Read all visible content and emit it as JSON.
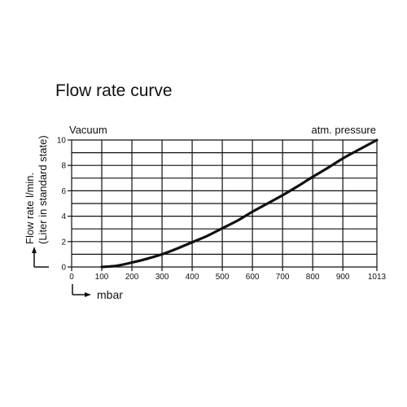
{
  "chart_data": {
    "type": "line",
    "title": "Flow rate curve",
    "ylabel_line1": "Flow rate l/min.",
    "ylabel_line2": "(Liter in standard state)",
    "xlabel": "mbar",
    "left_annotation": "Vacuum",
    "right_annotation": "atm. pressure",
    "grid": true,
    "xlim": [
      0,
      1013
    ],
    "ylim": [
      0,
      10
    ],
    "x_ticks": [
      0,
      100,
      200,
      300,
      400,
      500,
      600,
      700,
      800,
      900,
      1013
    ],
    "x_tick_labels": [
      "0",
      "100",
      "200",
      "300",
      "400",
      "500",
      "600",
      "700",
      "800",
      "900",
      "1013"
    ],
    "y_ticks": [
      0,
      2,
      4,
      6,
      8,
      10
    ],
    "y_tick_labels": [
      "0",
      "2",
      "4",
      "6",
      "8",
      "10"
    ],
    "y_gridlines": [
      0,
      1,
      2,
      3,
      4,
      5,
      6,
      7,
      8,
      9,
      10
    ],
    "series": [
      {
        "x": [
          100,
          150,
          200,
          250,
          300,
          350,
          400,
          450,
          500,
          550,
          600,
          650,
          700,
          750,
          800,
          850,
          900,
          950,
          1013
        ],
        "y": [
          0.0,
          0.1,
          0.35,
          0.65,
          1.0,
          1.45,
          1.95,
          2.45,
          3.05,
          3.65,
          4.35,
          5.0,
          5.65,
          6.35,
          7.1,
          7.8,
          8.55,
          9.2,
          10.0
        ]
      }
    ],
    "line_color": "#111111"
  }
}
